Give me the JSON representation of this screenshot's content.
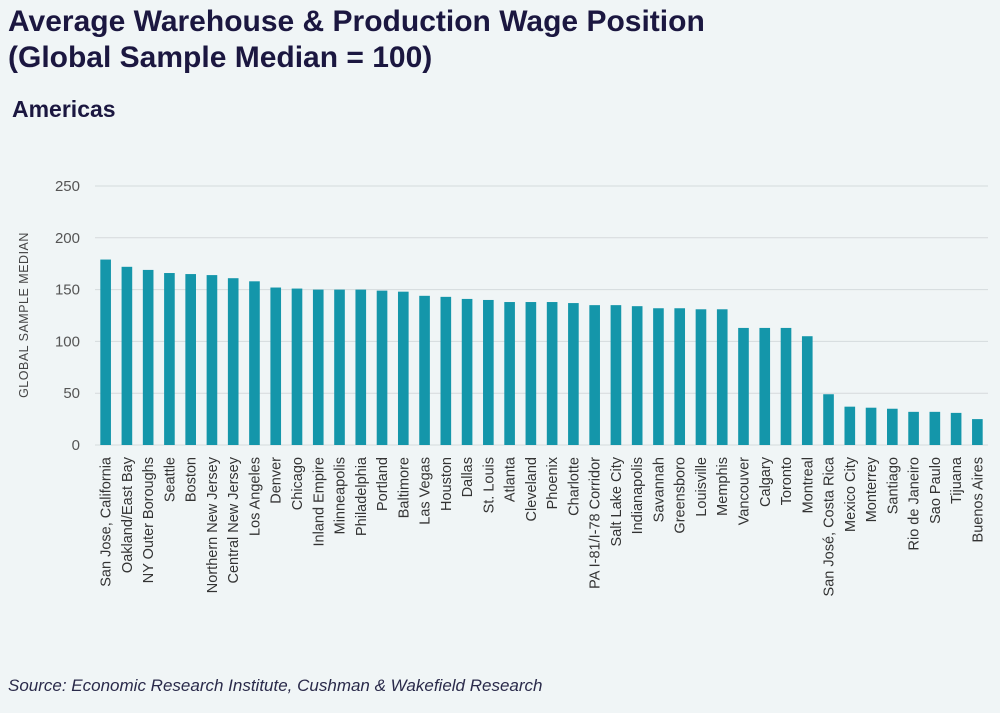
{
  "title_line1": "Average Warehouse & Production Wage Position",
  "title_line2": "(Global Sample Median = 100)",
  "subtitle": "Americas",
  "source": "Source: Economic Research Institute, Cushman & Wakefield Research",
  "colors": {
    "bar": "#1496aa",
    "text": "#1b1740"
  },
  "chart_data": {
    "type": "bar",
    "title": "Average Warehouse & Production Wage Position (Global Sample Median = 100)",
    "subtitle": "Americas",
    "xlabel": "",
    "ylabel": "GLOBAL SAMPLE MEDIAN",
    "ylim": [
      0,
      250
    ],
    "yticks": [
      0,
      50,
      100,
      150,
      200,
      250
    ],
    "grid": true,
    "categories": [
      "San Jose, California",
      "Oakland/East Bay",
      "NY Outer Boroughs",
      "Seattle",
      "Boston",
      "Northern New Jersey",
      "Central New Jersey",
      "Los Angeles",
      "Denver",
      "Chicago",
      "Inland Empire",
      "Minneapolis",
      "Philadelphia",
      "Portland",
      "Baltimore",
      "Las Vegas",
      "Houston",
      "Dallas",
      "St. Louis",
      "Atlanta",
      "Cleveland",
      "Phoenix",
      "Charlotte",
      "PA I-81/I-78 Corridor",
      "Salt Lake City",
      "Indianapolis",
      "Savannah",
      "Greensboro",
      "Louisville",
      "Memphis",
      "Vancouver",
      "Calgary",
      "Toronto",
      "Montreal",
      "San José, Costa Rica",
      "Mexico City",
      "Monterrey",
      "Santiago",
      "Rio de Janeiro",
      "Sao Paulo",
      "Tijuana",
      "Buenos Aires"
    ],
    "values": [
      179,
      172,
      169,
      166,
      165,
      164,
      161,
      158,
      152,
      151,
      150,
      150,
      150,
      149,
      148,
      144,
      143,
      141,
      140,
      138,
      138,
      138,
      137,
      135,
      135,
      134,
      132,
      132,
      131,
      131,
      113,
      113,
      113,
      105,
      49,
      37,
      36,
      35,
      32,
      32,
      31,
      25
    ]
  }
}
